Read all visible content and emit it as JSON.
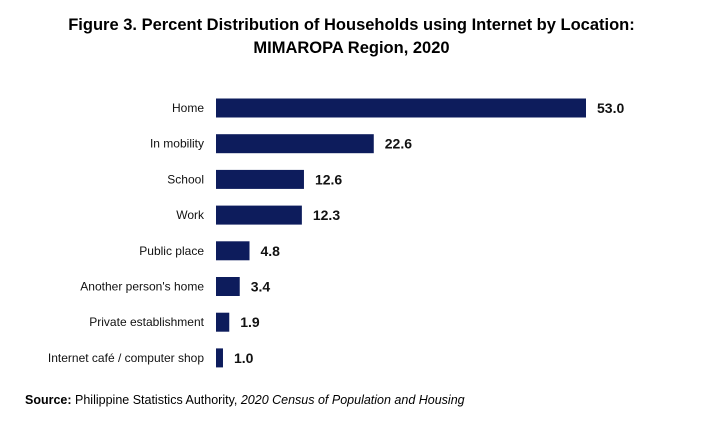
{
  "chart_data": {
    "type": "bar",
    "orientation": "horizontal",
    "title_lines": [
      "Figure 3. Percent Distribution of Households using Internet by Location:",
      "MIMAROPA Region, 2020"
    ],
    "categories": [
      "Home",
      "In mobility",
      "School",
      "Work",
      "Public place",
      "Another person's home",
      "Private establishment",
      "Internet café / computer shop"
    ],
    "values": [
      53.0,
      22.6,
      12.6,
      12.3,
      4.8,
      3.4,
      1.9,
      1.0
    ],
    "value_labels": [
      "53.0",
      "22.6",
      "12.6",
      "12.3",
      "4.8",
      "3.4",
      "1.9",
      "1.0"
    ],
    "bar_color": "#0d1c5c",
    "xlim": [
      0,
      53.0
    ],
    "grid": false,
    "legend": "none"
  },
  "source": {
    "label": "Source:",
    "text": " Philippine Statistics Authority, ",
    "italic": "2020 Census of Population and Housing"
  }
}
